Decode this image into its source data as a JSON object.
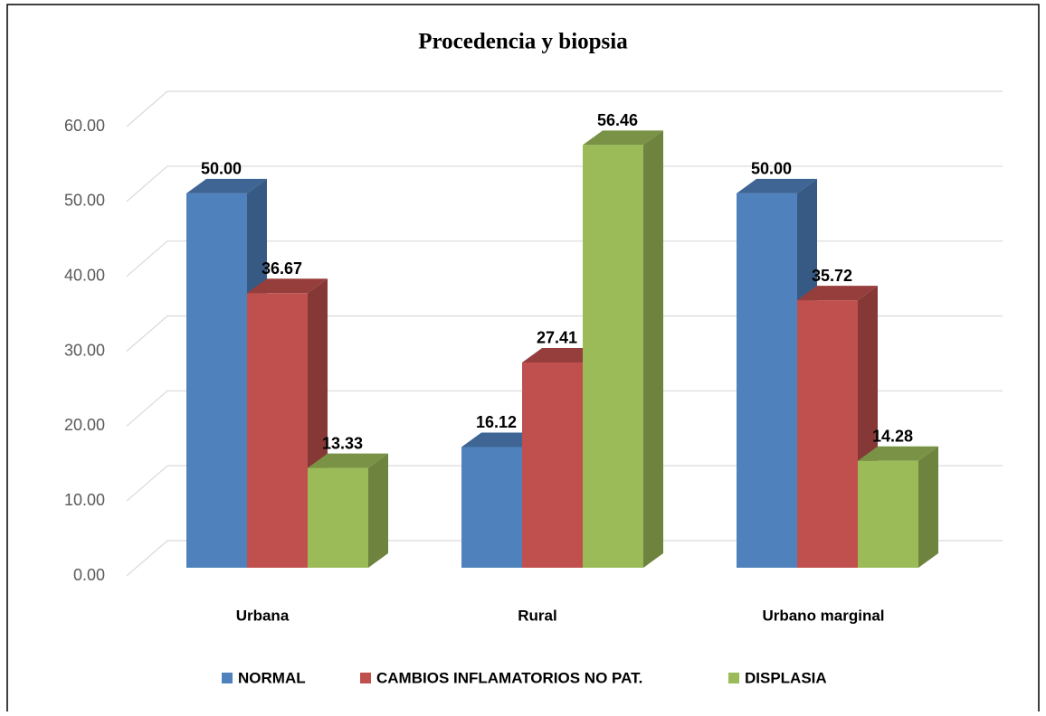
{
  "chart_data": {
    "type": "bar3d",
    "title": "Procedencia y biopsia",
    "categories": [
      "Urbana",
      "Rural",
      "Urbano marginal"
    ],
    "series": [
      {
        "name": "NORMAL",
        "color": "#4f81bd",
        "values": [
          50,
          16.12,
          50
        ],
        "value_labels": [
          "50.00",
          "16.12",
          "50.00"
        ]
      },
      {
        "name": "CAMBIOS INFLAMATORIOS NO PAT.",
        "color": "#c0504d",
        "values": [
          36.67,
          27.41,
          35.72
        ],
        "value_labels": [
          "36.67",
          "27.41",
          "35.72"
        ]
      },
      {
        "name": "DISPLASIA",
        "color": "#9bbb59",
        "values": [
          13.33,
          56.46,
          14.28
        ],
        "value_labels": [
          "13.33",
          "56.46",
          "14.28"
        ]
      }
    ],
    "ylim": [
      0,
      60
    ],
    "yticks": [
      {
        "value": 0,
        "label": "0.00"
      },
      {
        "value": 10,
        "label": "10.00"
      },
      {
        "value": 20,
        "label": "20.00"
      },
      {
        "value": 30,
        "label": "30.00"
      },
      {
        "value": 40,
        "label": "40.00"
      },
      {
        "value": 50,
        "label": "50.00"
      },
      {
        "value": 60,
        "label": "60.00"
      }
    ],
    "grid": true,
    "legend": "bottom"
  }
}
